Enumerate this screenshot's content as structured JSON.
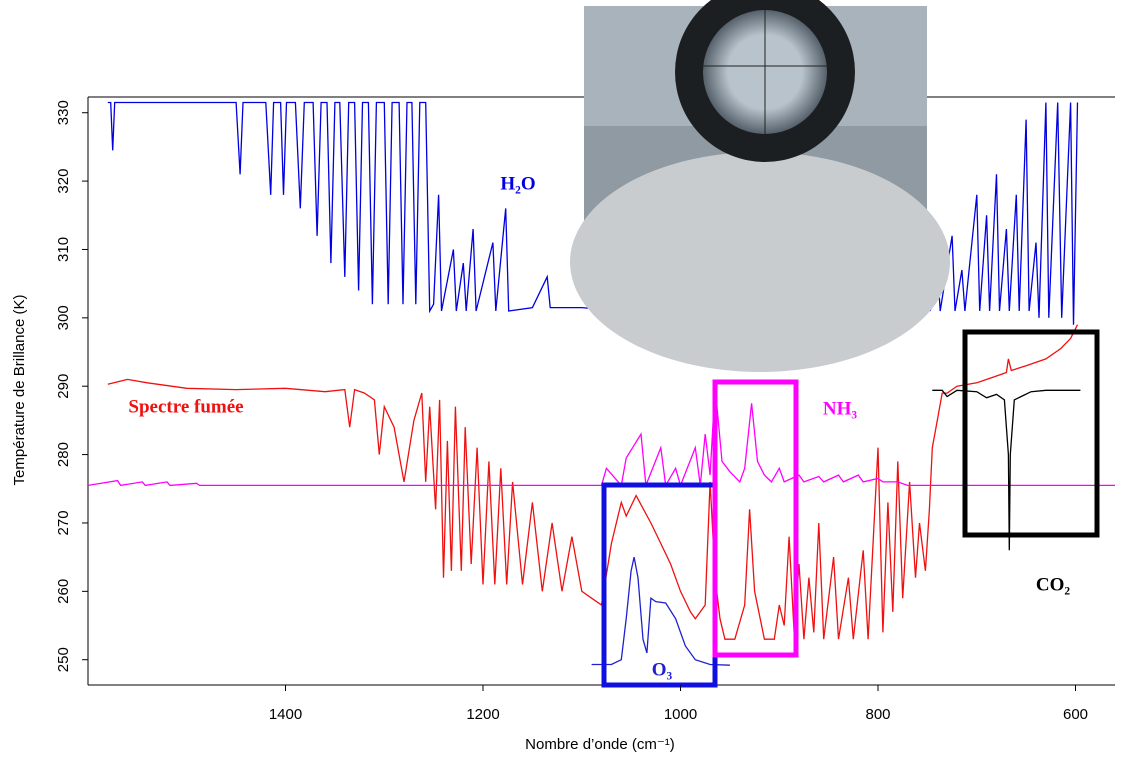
{
  "chart_data": {
    "type": "line",
    "xlabel": "Nombre d’onde (cm⁻¹)",
    "ylabel": "Température de Brillance (K)",
    "xlim": [
      1600,
      560
    ],
    "ylim": [
      246.3,
      332.3
    ],
    "xticks": [
      1400,
      1200,
      1000,
      800,
      600
    ],
    "yticks": [
      250,
      260,
      270,
      280,
      290,
      300,
      310,
      320,
      330
    ],
    "series": [
      {
        "name": "H₂O",
        "color": "#0000e0",
        "x": [
          1580,
          1577,
          1575,
          1573,
          1450,
          1446,
          1443,
          1420,
          1415,
          1412,
          1405,
          1402,
          1399,
          1390,
          1385,
          1381,
          1372,
          1368,
          1364,
          1358,
          1354,
          1350,
          1345,
          1340,
          1336,
          1330,
          1326,
          1322,
          1316,
          1312,
          1308,
          1300,
          1296,
          1292,
          1285,
          1281,
          1277,
          1272,
          1268,
          1264,
          1258,
          1254,
          1250,
          1245,
          1242,
          1230,
          1227,
          1220,
          1217,
          1210,
          1207,
          1190,
          1187,
          1177,
          1174,
          1150,
          1135,
          1132,
          1100,
          1060,
          1000,
          950,
          900,
          850,
          820,
          800,
          797,
          794,
          780,
          770,
          760,
          750,
          747,
          740,
          737,
          725,
          722,
          715,
          712,
          700,
          697,
          690,
          687,
          680,
          677,
          670,
          667,
          660,
          657,
          650,
          647,
          640,
          637,
          630,
          627,
          618,
          614,
          605,
          602,
          598
        ],
        "values": [
          331.5,
          331.5,
          324.5,
          331.5,
          331.5,
          321,
          331.5,
          331.5,
          318,
          331.5,
          331.5,
          318,
          331.5,
          331.5,
          316,
          331.5,
          331.5,
          312,
          331.5,
          331.5,
          308,
          331.5,
          331.5,
          306,
          331.5,
          331.5,
          304,
          331.5,
          331.5,
          302,
          331.5,
          331.5,
          302,
          331.5,
          331.5,
          302,
          331.5,
          331.5,
          302,
          331.5,
          331.5,
          301,
          302,
          318,
          301,
          310,
          301,
          308,
          301,
          313,
          301,
          311,
          301,
          316,
          301,
          301.5,
          306,
          301.5,
          301.5,
          301,
          300.8,
          300.8,
          301,
          301.5,
          301,
          301,
          306,
          301,
          302,
          303,
          301,
          304,
          301,
          308,
          301,
          312,
          301,
          307,
          301,
          318,
          301,
          315,
          301,
          321,
          301,
          313,
          301,
          318,
          301,
          329,
          301,
          311,
          300,
          331.5,
          300,
          331.5,
          300,
          331.5,
          299,
          331.5
        ]
      },
      {
        "name": "Spectre fumée",
        "color": "#f01010",
        "x": [
          1580,
          1560,
          1540,
          1500,
          1450,
          1400,
          1360,
          1340,
          1335,
          1330,
          1320,
          1310,
          1305,
          1300,
          1290,
          1280,
          1270,
          1262,
          1258,
          1254,
          1248,
          1244,
          1240,
          1236,
          1232,
          1228,
          1222,
          1218,
          1212,
          1206,
          1200,
          1194,
          1188,
          1182,
          1176,
          1170,
          1160,
          1150,
          1140,
          1130,
          1120,
          1110,
          1100,
          1090,
          1080,
          1070,
          1060,
          1055,
          1045,
          1030,
          1020,
          1010,
          1000,
          990,
          985,
          975,
          970,
          965,
          960,
          955,
          945,
          935,
          930,
          925,
          915,
          905,
          900,
          895,
          890,
          885,
          880,
          875,
          870,
          865,
          860,
          855,
          845,
          840,
          830,
          825,
          815,
          810,
          800,
          795,
          790,
          785,
          780,
          775,
          768,
          762,
          758,
          752,
          748,
          745,
          740,
          735,
          730,
          725,
          720,
          700,
          680,
          670,
          668,
          665,
          650,
          630,
          615,
          605,
          598
        ],
        "values": [
          290.3,
          291,
          290.5,
          289.7,
          289.5,
          289.7,
          289.2,
          289.5,
          284,
          289.5,
          289,
          288,
          280,
          287,
          284,
          276,
          285,
          289,
          276,
          287,
          272,
          288,
          262,
          282,
          263,
          287,
          263,
          284,
          264,
          281,
          261,
          279,
          261,
          278,
          261,
          276,
          261,
          273,
          260,
          270,
          260,
          268,
          260,
          259,
          258,
          267,
          273,
          271,
          274,
          270,
          267,
          264,
          260,
          257,
          256,
          258,
          276,
          262,
          256,
          253,
          253,
          258,
          272,
          260,
          253,
          253,
          258,
          255,
          268,
          254,
          264,
          253,
          262,
          254,
          270,
          253,
          265,
          253,
          262,
          253,
          266,
          253,
          281,
          254,
          273,
          257,
          279,
          259,
          276,
          262,
          270,
          263,
          272,
          281,
          285,
          289,
          289,
          289.5,
          290,
          290.5,
          291.5,
          292,
          294,
          292.3,
          293,
          294,
          295.5,
          297,
          299
        ]
      },
      {
        "name": "NH₃",
        "color": "#ff00ff",
        "x": [
          1600,
          1570,
          1567,
          1545,
          1542,
          1520,
          1517,
          1490,
          1487,
          1080,
          1075,
          1060,
          1055,
          1040,
          1035,
          1020,
          1015,
          1005,
          1000,
          985,
          980,
          975,
          970,
          965,
          958,
          950,
          940,
          935,
          928,
          922,
          915,
          908,
          900,
          895,
          880,
          875,
          860,
          855,
          840,
          835,
          820,
          815,
          800,
          795,
          780,
          770,
          560
        ],
        "values": [
          275.5,
          276.2,
          275.5,
          276,
          275.5,
          276,
          275.5,
          275.8,
          275.5,
          275.5,
          278,
          275.5,
          279.5,
          283,
          275.5,
          281,
          275.5,
          278,
          275.5,
          281,
          275.5,
          283,
          277,
          290,
          279,
          277.5,
          276,
          278,
          287.5,
          279,
          277,
          276,
          278,
          276,
          277,
          276,
          276.8,
          276,
          277,
          276,
          277,
          276,
          276.5,
          276,
          276,
          275.5,
          275.5
        ]
      },
      {
        "name": "O₃",
        "color": "#2020d0",
        "x": [
          1090,
          1070,
          1060,
          1055,
          1050,
          1047,
          1043,
          1038,
          1034,
          1030,
          1025,
          1015,
          1005,
          995,
          985,
          970,
          950
        ],
        "values": [
          249.3,
          249.3,
          250,
          256,
          263,
          265,
          262,
          253,
          251,
          259,
          258.5,
          258.3,
          256,
          252,
          250,
          249.3,
          249.2
        ]
      },
      {
        "name": "CO₂",
        "color": "#000000",
        "x": [
          745,
          735,
          730,
          720,
          700,
          690,
          680,
          672,
          668,
          667,
          666,
          662,
          655,
          645,
          630,
          595
        ],
        "values": [
          289.4,
          289.4,
          288.5,
          289.4,
          289.2,
          288.3,
          288.8,
          288,
          280,
          266,
          280,
          288,
          288.5,
          289.2,
          289.4,
          289.4
        ]
      }
    ]
  }
}
